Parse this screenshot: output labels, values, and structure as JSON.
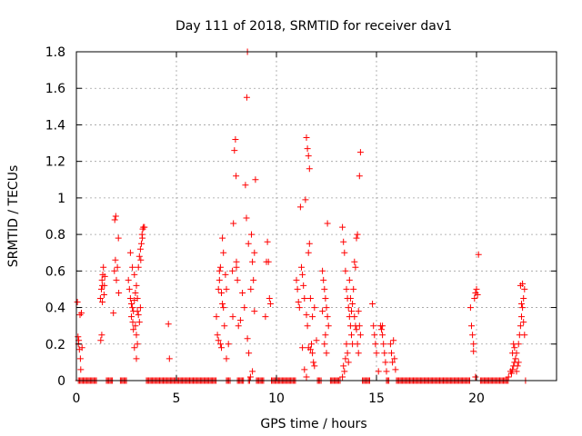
{
  "chart_data": {
    "type": "scatter",
    "title": "Day 111 of 2018, SRMTID for receiver dav1",
    "xlabel": "GPS time / hours",
    "ylabel": "SRMTID / TECUs",
    "xlim": [
      0,
      24
    ],
    "ylim": [
      0,
      1.8
    ],
    "xticks": [
      0,
      5,
      10,
      15,
      20
    ],
    "xtick_labels": [
      "0",
      "5",
      "10",
      "15",
      "20"
    ],
    "yticks": [
      0,
      0.2,
      0.4,
      0.6,
      0.8,
      1,
      1.2,
      1.4,
      1.6,
      1.8
    ],
    "ytick_labels": [
      "0",
      "0.2",
      "0.4",
      "0.6",
      "0.8",
      "1",
      "1.2",
      "1.4",
      "1.6",
      "1.8"
    ],
    "grid": true,
    "marker": "plus",
    "color": "#ff0000",
    "series": [
      {
        "name": "SRMTID",
        "points": [
          [
            0.05,
            0.43
          ],
          [
            0.1,
            0.2
          ],
          [
            0.12,
            0.22
          ],
          [
            0.15,
            0.17
          ],
          [
            0.18,
            0.36
          ],
          [
            0.2,
            0.12
          ],
          [
            0.22,
            0.06
          ],
          [
            0.25,
            0.37
          ],
          [
            0.08,
            0.24
          ],
          [
            0.28,
            0.18
          ],
          [
            1.2,
            0.45
          ],
          [
            1.25,
            0.5
          ],
          [
            1.28,
            0.55
          ],
          [
            1.3,
            0.43
          ],
          [
            1.32,
            0.58
          ],
          [
            1.35,
            0.62
          ],
          [
            1.38,
            0.47
          ],
          [
            1.4,
            0.52
          ],
          [
            1.22,
            0.22
          ],
          [
            1.27,
            0.25
          ],
          [
            1.3,
            0.52
          ],
          [
            1.42,
            0.57
          ],
          [
            1.85,
            0.37
          ],
          [
            1.9,
            0.6
          ],
          [
            1.95,
            0.66
          ],
          [
            1.92,
            0.88
          ],
          [
            1.97,
            0.9
          ],
          [
            2.05,
            0.62
          ],
          [
            2.1,
            0.78
          ],
          [
            2.0,
            0.55
          ],
          [
            2.12,
            0.48
          ],
          [
            2.6,
            0.55
          ],
          [
            2.65,
            0.5
          ],
          [
            2.7,
            0.45
          ],
          [
            2.75,
            0.42
          ],
          [
            2.8,
            0.4
          ],
          [
            2.85,
            0.38
          ],
          [
            2.9,
            0.44
          ],
          [
            2.95,
            0.48
          ],
          [
            3.0,
            0.52
          ],
          [
            3.05,
            0.45
          ],
          [
            2.7,
            0.7
          ],
          [
            2.8,
            0.62
          ],
          [
            2.9,
            0.58
          ],
          [
            3.0,
            0.25
          ],
          [
            2.85,
            0.28
          ],
          [
            2.95,
            0.3
          ],
          [
            3.05,
            0.2
          ],
          [
            3.1,
            0.62
          ],
          [
            3.15,
            0.68
          ],
          [
            3.2,
            0.72
          ],
          [
            3.25,
            0.75
          ],
          [
            3.3,
            0.78
          ],
          [
            3.32,
            0.83
          ],
          [
            3.35,
            0.84
          ],
          [
            3.4,
            0.84
          ],
          [
            3.22,
            0.66
          ],
          [
            3.28,
            0.8
          ],
          [
            2.9,
            0.18
          ],
          [
            3.0,
            0.12
          ],
          [
            2.75,
            0.35
          ],
          [
            2.82,
            0.32
          ],
          [
            3.1,
            0.36
          ],
          [
            3.15,
            0.32
          ],
          [
            3.2,
            0.4
          ],
          [
            3.05,
            0.38
          ],
          [
            4.6,
            0.31
          ],
          [
            4.65,
            0.12
          ],
          [
            7.1,
            0.5
          ],
          [
            7.15,
            0.55
          ],
          [
            7.2,
            0.62
          ],
          [
            7.25,
            0.48
          ],
          [
            7.3,
            0.42
          ],
          [
            7.35,
            0.4
          ],
          [
            7.0,
            0.35
          ],
          [
            7.05,
            0.25
          ],
          [
            7.1,
            0.22
          ],
          [
            7.2,
            0.2
          ],
          [
            7.25,
            0.18
          ],
          [
            7.3,
            0.78
          ],
          [
            7.35,
            0.7
          ],
          [
            7.15,
            0.6
          ],
          [
            7.4,
            0.3
          ],
          [
            7.5,
            0.12
          ],
          [
            7.6,
            0.2
          ],
          [
            7.45,
            0.58
          ],
          [
            7.5,
            0.5
          ],
          [
            7.8,
            0.6
          ],
          [
            7.85,
            0.86
          ],
          [
            7.9,
            1.26
          ],
          [
            7.95,
            1.32
          ],
          [
            7.98,
            1.12
          ],
          [
            8.0,
            0.65
          ],
          [
            8.05,
            0.55
          ],
          [
            7.82,
            0.35
          ],
          [
            8.1,
            0.3
          ],
          [
            8.0,
            0.62
          ],
          [
            8.2,
            0.33
          ],
          [
            8.3,
            0.48
          ],
          [
            8.4,
            0.4
          ],
          [
            8.45,
            1.07
          ],
          [
            8.5,
            0.89
          ],
          [
            8.52,
            1.55
          ],
          [
            8.55,
            1.8
          ],
          [
            8.6,
            0.75
          ],
          [
            8.55,
            0.23
          ],
          [
            8.62,
            0.15
          ],
          [
            8.7,
            0.02
          ],
          [
            8.75,
            0.8
          ],
          [
            8.8,
            0.65
          ],
          [
            8.85,
            0.55
          ],
          [
            8.9,
            0.7
          ],
          [
            8.95,
            1.1
          ],
          [
            8.8,
            0.05
          ],
          [
            8.72,
            0.5
          ],
          [
            8.9,
            0.38
          ],
          [
            9.5,
            0.65
          ],
          [
            9.55,
            0.76
          ],
          [
            9.6,
            0.65
          ],
          [
            9.65,
            0.45
          ],
          [
            9.7,
            0.42
          ],
          [
            9.45,
            0.35
          ],
          [
            11.0,
            0.55
          ],
          [
            11.05,
            0.5
          ],
          [
            11.1,
            0.43
          ],
          [
            11.15,
            0.4
          ],
          [
            11.2,
            0.95
          ],
          [
            11.25,
            0.62
          ],
          [
            11.3,
            0.58
          ],
          [
            11.35,
            0.52
          ],
          [
            11.4,
            0.45
          ],
          [
            11.45,
            0.99
          ],
          [
            11.5,
            1.33
          ],
          [
            11.55,
            1.27
          ],
          [
            11.6,
            1.23
          ],
          [
            11.65,
            1.16
          ],
          [
            11.6,
            0.7
          ],
          [
            11.65,
            0.75
          ],
          [
            11.5,
            0.36
          ],
          [
            11.55,
            0.3
          ],
          [
            11.6,
            0.18
          ],
          [
            11.7,
            0.17
          ],
          [
            11.75,
            0.2
          ],
          [
            11.8,
            0.15
          ],
          [
            11.85,
            0.1
          ],
          [
            11.9,
            0.08
          ],
          [
            11.7,
            0.45
          ],
          [
            11.8,
            0.35
          ],
          [
            11.9,
            0.4
          ],
          [
            12.0,
            0.22
          ],
          [
            11.3,
            0.18
          ],
          [
            11.4,
            0.06
          ],
          [
            11.5,
            0.02
          ],
          [
            12.3,
            0.6
          ],
          [
            12.35,
            0.55
          ],
          [
            12.4,
            0.5
          ],
          [
            12.45,
            0.45
          ],
          [
            12.5,
            0.4
          ],
          [
            12.55,
            0.35
          ],
          [
            12.6,
            0.3
          ],
          [
            12.4,
            0.2
          ],
          [
            12.5,
            0.15
          ],
          [
            12.55,
            0.86
          ],
          [
            12.45,
            0.25
          ],
          [
            12.3,
            0.38
          ],
          [
            13.3,
            0.84
          ],
          [
            13.35,
            0.76
          ],
          [
            13.4,
            0.7
          ],
          [
            13.45,
            0.6
          ],
          [
            13.5,
            0.5
          ],
          [
            13.55,
            0.45
          ],
          [
            13.6,
            0.4
          ],
          [
            13.65,
            0.35
          ],
          [
            13.7,
            0.3
          ],
          [
            13.75,
            0.25
          ],
          [
            13.8,
            0.2
          ],
          [
            13.5,
            0.2
          ],
          [
            13.55,
            0.15
          ],
          [
            13.6,
            0.1
          ],
          [
            13.4,
            0.05
          ],
          [
            13.3,
            0.02
          ],
          [
            13.35,
            0.08
          ],
          [
            13.45,
            0.12
          ],
          [
            13.65,
            0.55
          ],
          [
            13.7,
            0.45
          ],
          [
            13.75,
            0.38
          ],
          [
            13.8,
            0.42
          ],
          [
            13.85,
            0.5
          ],
          [
            13.9,
            0.65
          ],
          [
            13.95,
            0.62
          ],
          [
            14.0,
            0.78
          ],
          [
            14.05,
            0.8
          ],
          [
            13.9,
            0.35
          ],
          [
            13.95,
            0.3
          ],
          [
            14.0,
            0.28
          ],
          [
            14.05,
            0.2
          ],
          [
            14.1,
            0.15
          ],
          [
            14.2,
            1.25
          ],
          [
            14.15,
            1.12
          ],
          [
            14.1,
            0.38
          ],
          [
            14.15,
            0.3
          ],
          [
            14.2,
            0.25
          ],
          [
            14.8,
            0.42
          ],
          [
            14.85,
            0.3
          ],
          [
            14.9,
            0.25
          ],
          [
            14.95,
            0.2
          ],
          [
            15.0,
            0.15
          ],
          [
            15.1,
            0.05
          ],
          [
            15.2,
            0.3
          ],
          [
            15.25,
            0.28
          ],
          [
            15.3,
            0.25
          ],
          [
            15.35,
            0.2
          ],
          [
            15.4,
            0.15
          ],
          [
            15.45,
            0.1
          ],
          [
            15.5,
            0.05
          ],
          [
            15.3,
            0.3
          ],
          [
            15.7,
            0.2
          ],
          [
            15.75,
            0.15
          ],
          [
            15.8,
            0.1
          ],
          [
            15.9,
            0.12
          ],
          [
            15.95,
            0.06
          ],
          [
            15.85,
            0.22
          ],
          [
            19.7,
            0.4
          ],
          [
            19.75,
            0.3
          ],
          [
            19.8,
            0.25
          ],
          [
            19.85,
            0.2
          ],
          [
            19.9,
            0.45
          ],
          [
            19.95,
            0.48
          ],
          [
            20.0,
            0.5
          ],
          [
            20.05,
            0.47
          ],
          [
            20.1,
            0.69
          ],
          [
            19.85,
            0.16
          ],
          [
            19.95,
            0.02
          ],
          [
            21.6,
            0.02
          ],
          [
            21.7,
            0.05
          ],
          [
            21.75,
            0.04
          ],
          [
            21.8,
            0.06
          ],
          [
            21.85,
            0.08
          ],
          [
            21.9,
            0.1
          ],
          [
            21.95,
            0.12
          ],
          [
            22.0,
            0.05
          ],
          [
            22.05,
            0.08
          ],
          [
            22.1,
            0.1
          ],
          [
            21.8,
            0.15
          ],
          [
            21.85,
            0.2
          ],
          [
            21.9,
            0.18
          ],
          [
            22.0,
            0.15
          ],
          [
            22.1,
            0.2
          ],
          [
            22.15,
            0.25
          ],
          [
            22.2,
            0.3
          ],
          [
            22.25,
            0.35
          ],
          [
            22.3,
            0.4
          ],
          [
            22.35,
            0.45
          ],
          [
            22.4,
            0.5
          ],
          [
            22.2,
            0.52
          ],
          [
            22.3,
            0.53
          ],
          [
            22.25,
            0.42
          ],
          [
            22.35,
            0.32
          ],
          [
            22.4,
            0.25
          ]
        ]
      }
    ],
    "zero_bands": [
      [
        0.1,
        1.0
      ],
      [
        1.5,
        1.8
      ],
      [
        2.2,
        2.5
      ],
      [
        3.5,
        7.0
      ],
      [
        7.5,
        7.7
      ],
      [
        8.05,
        8.4
      ],
      [
        8.6,
        8.7
      ],
      [
        9.0,
        9.4
      ],
      [
        9.75,
        11.0
      ],
      [
        12.05,
        12.25
      ],
      [
        12.7,
        13.2
      ],
      [
        14.3,
        14.7
      ],
      [
        15.5,
        15.65
      ],
      [
        16.0,
        19.7
      ],
      [
        20.2,
        21.6
      ],
      [
        22.45,
        22.5
      ]
    ]
  }
}
